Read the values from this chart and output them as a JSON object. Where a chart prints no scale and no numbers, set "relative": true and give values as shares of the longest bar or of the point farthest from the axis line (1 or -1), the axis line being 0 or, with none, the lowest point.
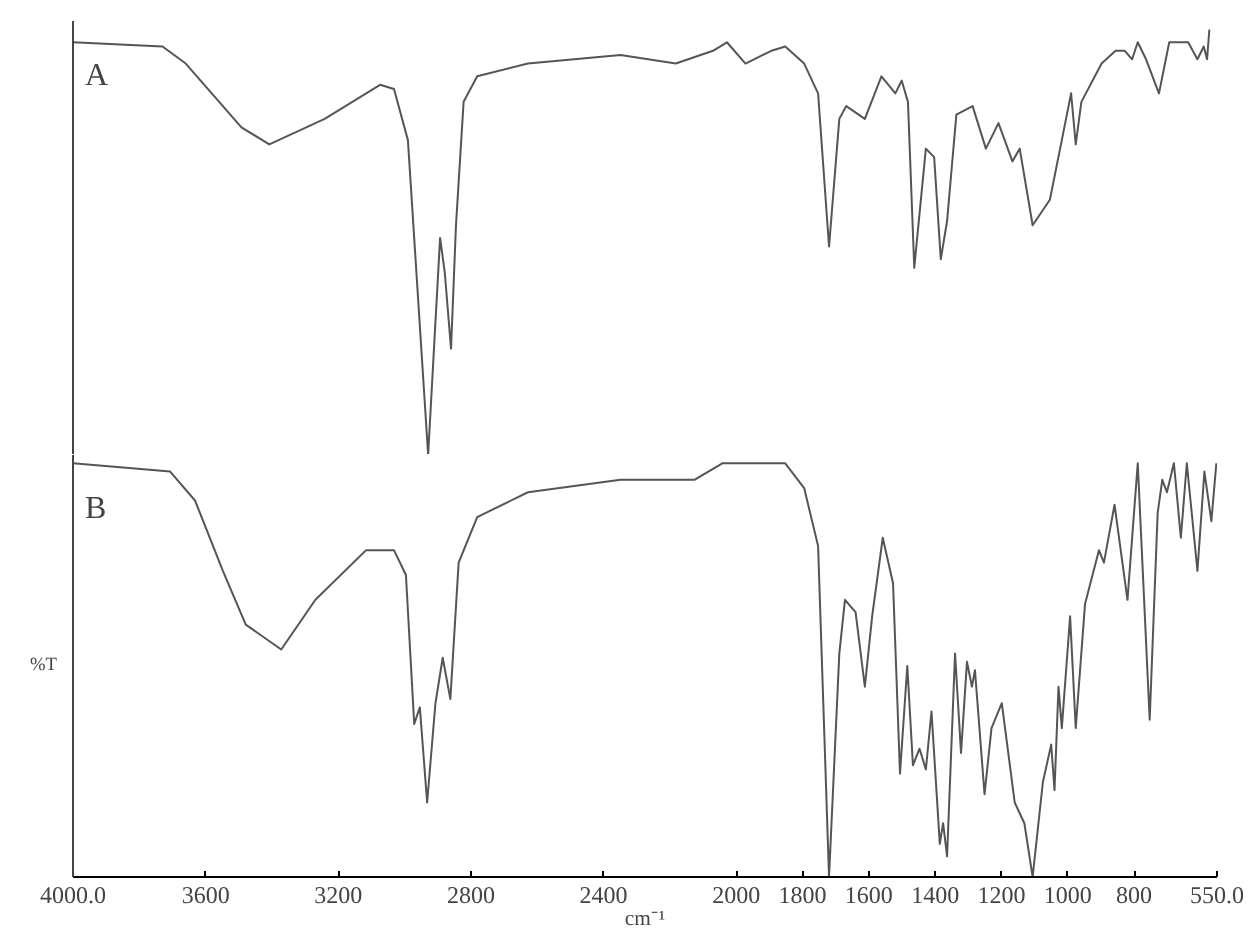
{
  "chart_data": [
    {
      "type": "line",
      "relative": true,
      "annotations": [
        "A"
      ],
      "xlim": [
        4000,
        550
      ],
      "tick_labels": false,
      "grid": false,
      "series": [
        {
          "color": "#555555",
          "x": [
            4000,
            3730,
            3660,
            3492,
            3408,
            3241,
            3074,
            3032,
            2990,
            2962,
            2929,
            2893,
            2879,
            2860,
            2845,
            2822,
            2781,
            2628,
            2349,
            2182,
            2070,
            2028,
            1972,
            1894,
            1852,
            1795,
            1753,
            1720,
            1689,
            1668,
            1612,
            1562,
            1520,
            1501,
            1482,
            1463,
            1428,
            1403,
            1383,
            1364,
            1336,
            1287,
            1247,
            1209,
            1167,
            1145,
            1106,
            1054,
            1018,
            990,
            976,
            959,
            898,
            856,
            828,
            806,
            789,
            764,
            725,
            694,
            637,
            609,
            590,
            580,
            573
          ],
          "values": [
            0.97,
            0.96,
            0.92,
            0.77,
            0.73,
            0.79,
            0.87,
            0.86,
            0.74,
            0.4,
            0.0,
            0.51,
            0.43,
            0.25,
            0.54,
            0.83,
            0.89,
            0.92,
            0.94,
            0.92,
            0.95,
            0.97,
            0.92,
            0.95,
            0.96,
            0.92,
            0.85,
            0.49,
            0.79,
            0.82,
            0.79,
            0.89,
            0.85,
            0.88,
            0.83,
            0.44,
            0.72,
            0.7,
            0.46,
            0.55,
            0.8,
            0.82,
            0.72,
            0.78,
            0.69,
            0.72,
            0.54,
            0.6,
            0.74,
            0.85,
            0.73,
            0.83,
            0.92,
            0.95,
            0.95,
            0.93,
            0.97,
            0.93,
            0.85,
            0.97,
            0.97,
            0.93,
            0.96,
            0.93,
            1.0
          ]
        }
      ]
    },
    {
      "type": "line",
      "relative": true,
      "annotations": [
        "B"
      ],
      "xlabel": "cm⁻¹",
      "ylabel": "%T",
      "xlim": [
        4000,
        550
      ],
      "xticks": [
        {
          "value": 4000,
          "label": "4000.0"
        },
        3600,
        3200,
        2800,
        2400,
        2000,
        1800,
        1600,
        1400,
        1200,
        1000,
        800,
        {
          "value": 550,
          "label": "550.0"
        }
      ],
      "tick_labels": "x",
      "grid": false,
      "series": [
        {
          "color": "#555555",
          "x": [
            4000,
            3707,
            3632,
            3548,
            3479,
            3372,
            3269,
            3116,
            3032,
            2996,
            2971,
            2954,
            2932,
            2907,
            2885,
            2862,
            2837,
            2781,
            2628,
            2349,
            2126,
            2042,
            1852,
            1795,
            1753,
            1720,
            1689,
            1672,
            1640,
            1612,
            1590,
            1558,
            1527,
            1506,
            1484,
            1467,
            1447,
            1428,
            1411,
            1386,
            1376,
            1364,
            1340,
            1322,
            1304,
            1289,
            1280,
            1251,
            1230,
            1199,
            1160,
            1131,
            1106,
            1075,
            1050,
            1040,
            1028,
            1018,
            993,
            976,
            948,
            906,
            891,
            859,
            820,
            789,
            753,
            729,
            715,
            701,
            680,
            659,
            641,
            609,
            588,
            567,
            552
          ],
          "values": [
            1.0,
            0.98,
            0.91,
            0.74,
            0.61,
            0.55,
            0.67,
            0.79,
            0.79,
            0.73,
            0.37,
            0.41,
            0.18,
            0.42,
            0.53,
            0.43,
            0.76,
            0.87,
            0.93,
            0.96,
            0.96,
            1.0,
            1.0,
            0.94,
            0.8,
            0.0,
            0.54,
            0.67,
            0.64,
            0.46,
            0.63,
            0.82,
            0.71,
            0.25,
            0.51,
            0.27,
            0.31,
            0.26,
            0.4,
            0.08,
            0.13,
            0.05,
            0.54,
            0.3,
            0.52,
            0.46,
            0.5,
            0.2,
            0.36,
            0.42,
            0.18,
            0.13,
            0.0,
            0.23,
            0.32,
            0.21,
            0.46,
            0.36,
            0.63,
            0.36,
            0.66,
            0.79,
            0.76,
            0.9,
            0.67,
            1.0,
            0.38,
            0.88,
            0.96,
            0.93,
            1.0,
            0.82,
            1.0,
            0.74,
            0.98,
            0.86,
            1.0
          ]
        }
      ]
    }
  ]
}
